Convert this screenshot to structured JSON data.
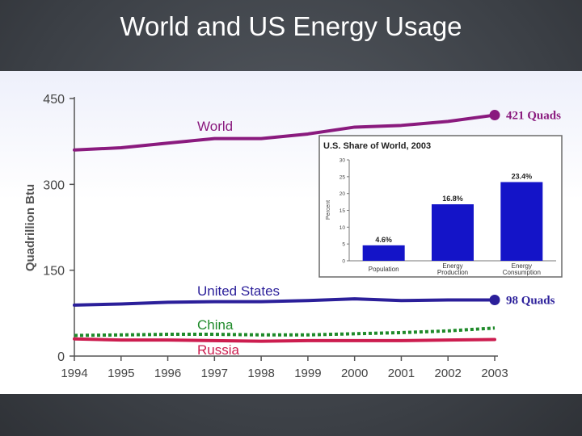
{
  "slide": {
    "title": "World and US Energy Usage"
  },
  "colors": {
    "world": "#8a1a7e",
    "united_states": "#2b1f9a",
    "china": "#1f8a2a",
    "russia": "#cc1d4f",
    "inset_bar": "#1414c8",
    "axis": "#555555"
  },
  "chart_data": [
    {
      "type": "line",
      "title": "",
      "xlabel": "",
      "ylabel": "Quadrillion Btu",
      "x": [
        1994,
        1995,
        1996,
        1997,
        1998,
        1999,
        2000,
        2001,
        2002,
        2003
      ],
      "x_tick_labels": [
        "1994",
        "1995",
        "1996",
        "1997",
        "1998",
        "1999",
        "2000",
        "2001",
        "2002",
        "2003"
      ],
      "y_tick_labels": [
        "0",
        "150",
        "300",
        "450"
      ],
      "y_ticks": [
        0,
        150,
        300,
        450
      ],
      "ylim": [
        0,
        450
      ],
      "grid": false,
      "series": [
        {
          "name": "World",
          "values": [
            360,
            364,
            372,
            380,
            380,
            388,
            400,
            403,
            410,
            421
          ],
          "style": "solid"
        },
        {
          "name": "United States",
          "values": [
            89,
            91,
            94,
            95,
            95,
            97,
            100,
            97,
            98,
            98
          ],
          "style": "solid"
        },
        {
          "name": "China",
          "values": [
            36,
            37,
            38,
            38,
            37,
            37,
            39,
            41,
            44,
            49
          ],
          "style": "dotted"
        },
        {
          "name": "Russia",
          "values": [
            30,
            28,
            28,
            27,
            26,
            27,
            27,
            27,
            28,
            29
          ],
          "style": "solid"
        }
      ],
      "annotations": [
        {
          "series": "World",
          "text": "421 Quads"
        },
        {
          "series": "United States",
          "text": "98 Quads"
        }
      ]
    },
    {
      "type": "bar",
      "title": "U.S. Share of World, 2003",
      "xlabel": "",
      "ylabel": "Percent",
      "categories": [
        "Population",
        "Energy Production",
        "Energy Consumption"
      ],
      "values": [
        4.6,
        16.8,
        23.4
      ],
      "value_labels": [
        "4.6%",
        "16.8%",
        "23.4%"
      ],
      "y_ticks": [
        0,
        5,
        10,
        15,
        20,
        25,
        30
      ],
      "y_tick_labels": [
        "0",
        "5",
        "10",
        "15",
        "20",
        "25",
        "30"
      ],
      "ylim": [
        0,
        30
      ],
      "grid": false
    }
  ]
}
